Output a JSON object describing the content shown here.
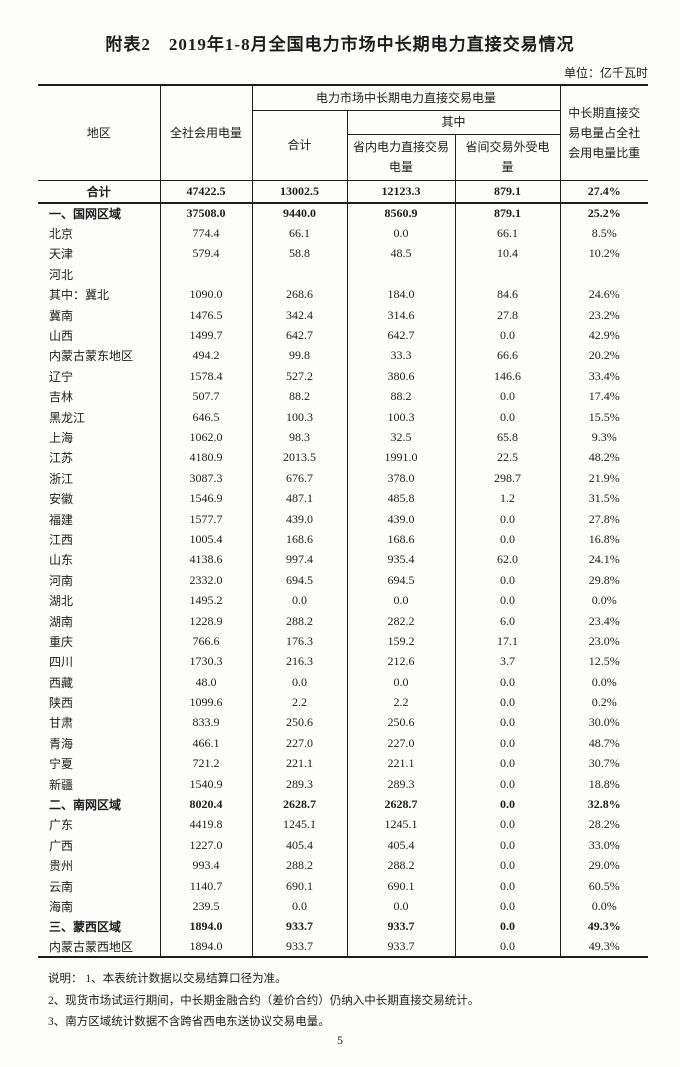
{
  "page": {
    "title": "附表2　2019年1-8月全国电力市场中长期电力直接交易情况",
    "unit": "单位：亿千瓦时",
    "page_number": "5"
  },
  "table": {
    "headers": {
      "region": "地区",
      "total_consumption": "全社会用电量",
      "trade_group": "电力市场中长期电力直接交易电量",
      "trade_total": "合计",
      "among": "其中",
      "intra": "省内电力直接交易\n电量",
      "inter": "省间交易外受电\n量",
      "share": "中长期直接交\n易电量占全社\n会用电量比重"
    },
    "rows": [
      {
        "cells": [
          "合计",
          "47422.5",
          "13002.5",
          "12123.3",
          "879.1",
          "27.4%"
        ],
        "bold": true,
        "separator": true,
        "center_region": true
      },
      {
        "cells": [
          "一、国网区域",
          "37508.0",
          "9440.0",
          "8560.9",
          "879.1",
          "25.2%"
        ],
        "bold": true
      },
      {
        "cells": [
          "北京",
          "774.4",
          "66.1",
          "0.0",
          "66.1",
          "8.5%"
        ]
      },
      {
        "cells": [
          "天津",
          "579.4",
          "58.8",
          "48.5",
          "10.4",
          "10.2%"
        ]
      },
      {
        "cells": [
          "河北",
          "",
          "",
          "",
          "",
          ""
        ]
      },
      {
        "cells": [
          "其中：冀北",
          "1090.0",
          "268.6",
          "184.0",
          "84.6",
          "24.6%"
        ]
      },
      {
        "cells": [
          "冀南",
          "1476.5",
          "342.4",
          "314.6",
          "27.8",
          "23.2%"
        ]
      },
      {
        "cells": [
          "山西",
          "1499.7",
          "642.7",
          "642.7",
          "0.0",
          "42.9%"
        ]
      },
      {
        "cells": [
          "内蒙古蒙东地区",
          "494.2",
          "99.8",
          "33.3",
          "66.6",
          "20.2%"
        ]
      },
      {
        "cells": [
          "辽宁",
          "1578.4",
          "527.2",
          "380.6",
          "146.6",
          "33.4%"
        ]
      },
      {
        "cells": [
          "吉林",
          "507.7",
          "88.2",
          "88.2",
          "0.0",
          "17.4%"
        ]
      },
      {
        "cells": [
          "黑龙江",
          "646.5",
          "100.3",
          "100.3",
          "0.0",
          "15.5%"
        ]
      },
      {
        "cells": [
          "上海",
          "1062.0",
          "98.3",
          "32.5",
          "65.8",
          "9.3%"
        ]
      },
      {
        "cells": [
          "江苏",
          "4180.9",
          "2013.5",
          "1991.0",
          "22.5",
          "48.2%"
        ]
      },
      {
        "cells": [
          "浙江",
          "3087.3",
          "676.7",
          "378.0",
          "298.7",
          "21.9%"
        ]
      },
      {
        "cells": [
          "安徽",
          "1546.9",
          "487.1",
          "485.8",
          "1.2",
          "31.5%"
        ]
      },
      {
        "cells": [
          "福建",
          "1577.7",
          "439.0",
          "439.0",
          "0.0",
          "27.8%"
        ]
      },
      {
        "cells": [
          "江西",
          "1005.4",
          "168.6",
          "168.6",
          "0.0",
          "16.8%"
        ]
      },
      {
        "cells": [
          "山东",
          "4138.6",
          "997.4",
          "935.4",
          "62.0",
          "24.1%"
        ]
      },
      {
        "cells": [
          "河南",
          "2332.0",
          "694.5",
          "694.5",
          "0.0",
          "29.8%"
        ]
      },
      {
        "cells": [
          "湖北",
          "1495.2",
          "0.0",
          "0.0",
          "0.0",
          "0.0%"
        ]
      },
      {
        "cells": [
          "湖南",
          "1228.9",
          "288.2",
          "282.2",
          "6.0",
          "23.4%"
        ]
      },
      {
        "cells": [
          "重庆",
          "766.6",
          "176.3",
          "159.2",
          "17.1",
          "23.0%"
        ]
      },
      {
        "cells": [
          "四川",
          "1730.3",
          "216.3",
          "212.6",
          "3.7",
          "12.5%"
        ]
      },
      {
        "cells": [
          "西藏",
          "48.0",
          "0.0",
          "0.0",
          "0.0",
          "0.0%"
        ]
      },
      {
        "cells": [
          "陕西",
          "1099.6",
          "2.2",
          "2.2",
          "0.0",
          "0.2%"
        ]
      },
      {
        "cells": [
          "甘肃",
          "833.9",
          "250.6",
          "250.6",
          "0.0",
          "30.0%"
        ]
      },
      {
        "cells": [
          "青海",
          "466.1",
          "227.0",
          "227.0",
          "0.0",
          "48.7%"
        ]
      },
      {
        "cells": [
          "宁夏",
          "721.2",
          "221.1",
          "221.1",
          "0.0",
          "30.7%"
        ]
      },
      {
        "cells": [
          "新疆",
          "1540.9",
          "289.3",
          "289.3",
          "0.0",
          "18.8%"
        ]
      },
      {
        "cells": [
          "二、南网区域",
          "8020.4",
          "2628.7",
          "2628.7",
          "0.0",
          "32.8%"
        ],
        "bold": true
      },
      {
        "cells": [
          "广东",
          "4419.8",
          "1245.1",
          "1245.1",
          "0.0",
          "28.2%"
        ]
      },
      {
        "cells": [
          "广西",
          "1227.0",
          "405.4",
          "405.4",
          "0.0",
          "33.0%"
        ]
      },
      {
        "cells": [
          "贵州",
          "993.4",
          "288.2",
          "288.2",
          "0.0",
          "29.0%"
        ]
      },
      {
        "cells": [
          "云南",
          "1140.7",
          "690.1",
          "690.1",
          "0.0",
          "60.5%"
        ]
      },
      {
        "cells": [
          "海南",
          "239.5",
          "0.0",
          "0.0",
          "0.0",
          "0.0%"
        ]
      },
      {
        "cells": [
          "三、蒙西区域",
          "1894.0",
          "933.7",
          "933.7",
          "0.0",
          "49.3%"
        ],
        "bold": true
      },
      {
        "cells": [
          "内蒙古蒙西地区",
          "1894.0",
          "933.7",
          "933.7",
          "0.0",
          "49.3%"
        ]
      }
    ]
  },
  "notes": [
    "说明：  1、本表统计数据以交易结算口径为准。",
    "2、现货市场试运行期间，中长期金融合约（差价合约）仍纳入中长期直接交易统计。",
    "3、南方区域统计数据不含跨省西电东送协议交易电量。"
  ]
}
